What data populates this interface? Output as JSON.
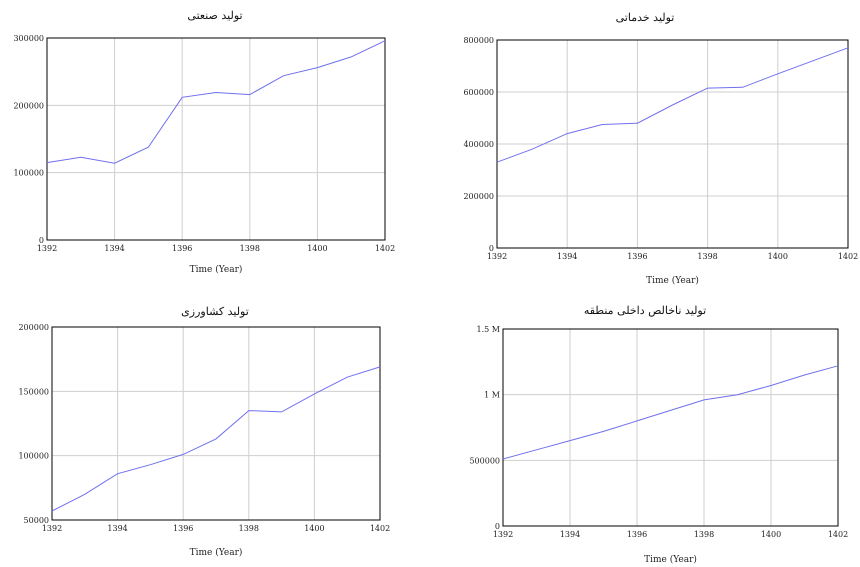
{
  "chart_data": [
    {
      "type": "line",
      "title": "تولید صنعتی",
      "xlabel": "Time (Year)",
      "ylabel": "",
      "xlim": [
        1392,
        1402
      ],
      "ylim": [
        0,
        300000
      ],
      "x_ticks": [
        "1392",
        "1394",
        "1396",
        "1398",
        "1400",
        "1402"
      ],
      "y_ticks": [
        {
          "v": 0,
          "label": "0"
        },
        {
          "v": 100000,
          "label": "100000"
        },
        {
          "v": 200000,
          "label": "200000"
        },
        {
          "v": 300000,
          "label": "300000"
        }
      ],
      "grid": true,
      "series": [
        {
          "x": [
            1392,
            1393,
            1394,
            1395,
            1396,
            1397,
            1398,
            1399,
            1400,
            1401,
            1402
          ],
          "y": [
            115000,
            123000,
            114000,
            138000,
            212000,
            219000,
            216000,
            244000,
            256000,
            272000,
            296000
          ]
        }
      ]
    },
    {
      "type": "line",
      "title": "تولید خدماتی",
      "xlabel": "Time (Year)",
      "ylabel": "",
      "xlim": [
        1392,
        1402
      ],
      "ylim": [
        0,
        800000
      ],
      "x_ticks": [
        "1392",
        "1394",
        "1396",
        "1398",
        "1400",
        "1402"
      ],
      "y_ticks": [
        {
          "v": 0,
          "label": "0"
        },
        {
          "v": 200000,
          "label": "200000"
        },
        {
          "v": 400000,
          "label": "400000"
        },
        {
          "v": 600000,
          "label": "600000"
        },
        {
          "v": 800000,
          "label": "800000"
        }
      ],
      "grid": true,
      "series": [
        {
          "x": [
            1392,
            1393,
            1394,
            1395,
            1396,
            1397,
            1398,
            1399,
            1400,
            1401,
            1402
          ],
          "y": [
            330000,
            380000,
            440000,
            475000,
            480000,
            550000,
            615000,
            618000,
            670000,
            720000,
            770000
          ]
        }
      ]
    },
    {
      "type": "line",
      "title": "تولید کشاورزی",
      "xlabel": "Time (Year)",
      "ylabel": "",
      "xlim": [
        1392,
        1402
      ],
      "ylim": [
        50000,
        200000
      ],
      "x_ticks": [
        "1392",
        "1394",
        "1396",
        "1398",
        "1400",
        "1402"
      ],
      "y_ticks": [
        {
          "v": 50000,
          "label": "50000"
        },
        {
          "v": 100000,
          "label": "100000"
        },
        {
          "v": 150000,
          "label": "150000"
        },
        {
          "v": 200000,
          "label": "200000"
        }
      ],
      "grid": true,
      "series": [
        {
          "x": [
            1392,
            1393,
            1394,
            1395,
            1396,
            1397,
            1398,
            1399,
            1400,
            1401,
            1402
          ],
          "y": [
            57000,
            70000,
            86000,
            93000,
            101000,
            113000,
            135000,
            134000,
            148000,
            161000,
            169000
          ]
        }
      ]
    },
    {
      "type": "line",
      "title": "تولید ناخالص داخلی منطقه",
      "xlabel": "Time (Year)",
      "ylabel": "",
      "xlim": [
        1392,
        1402
      ],
      "ylim": [
        0,
        1500000
      ],
      "x_ticks": [
        "1392",
        "1394",
        "1396",
        "1398",
        "1400",
        "1402"
      ],
      "y_ticks": [
        {
          "v": 0,
          "label": "0"
        },
        {
          "v": 500000,
          "label": "500000"
        },
        {
          "v": 1000000,
          "label": "1 M"
        },
        {
          "v": 1500000,
          "label": "1.5 M"
        }
      ],
      "grid": true,
      "series": [
        {
          "x": [
            1392,
            1393,
            1394,
            1395,
            1396,
            1397,
            1398,
            1399,
            1400,
            1401,
            1402
          ],
          "y": [
            510000,
            580000,
            650000,
            720000,
            800000,
            880000,
            960000,
            1000000,
            1070000,
            1150000,
            1220000
          ]
        }
      ]
    }
  ]
}
